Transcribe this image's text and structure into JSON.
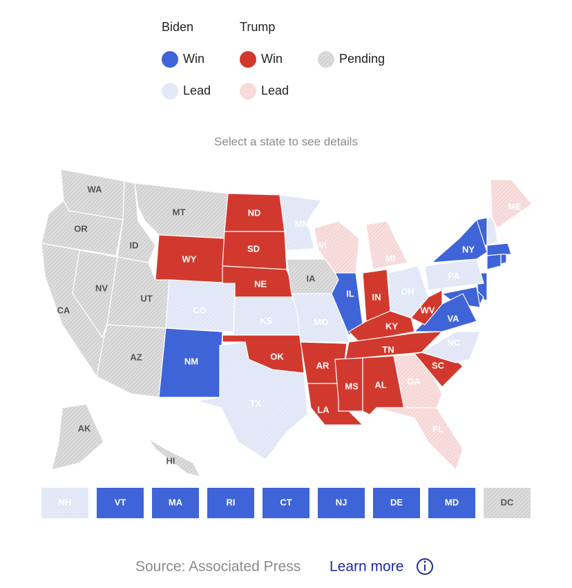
{
  "legend": {
    "groups": [
      {
        "name": "Biden",
        "items": [
          {
            "label": "Win",
            "status": "biden-win"
          },
          {
            "label": "Lead",
            "status": "biden-lead"
          }
        ]
      },
      {
        "name": "Trump",
        "items": [
          {
            "label": "Win",
            "status": "trump-win"
          },
          {
            "label": "Lead",
            "status": "trump-lead"
          }
        ]
      },
      {
        "items": [
          {
            "label": "Pending",
            "status": "pending"
          }
        ]
      }
    ]
  },
  "colors": {
    "biden-win": "#3e64d8",
    "biden-lead": "#dfe5f6",
    "trump-win": "#d2392e",
    "trump-lead": "#f6d6d6",
    "pending": "#d3d3d3"
  },
  "prompt": "Select a state to see details",
  "states": [
    {
      "label": "WA",
      "status": "pending"
    },
    {
      "label": "OR",
      "status": "pending"
    },
    {
      "label": "CA",
      "status": "pending"
    },
    {
      "label": "NV",
      "status": "pending"
    },
    {
      "label": "ID",
      "status": "pending"
    },
    {
      "label": "MT",
      "status": "pending"
    },
    {
      "label": "WY",
      "status": "trump-win"
    },
    {
      "label": "UT",
      "status": "pending"
    },
    {
      "label": "AZ",
      "status": "pending"
    },
    {
      "label": "CO",
      "status": "biden-lead"
    },
    {
      "label": "NM",
      "status": "biden-win"
    },
    {
      "label": "ND",
      "status": "trump-win"
    },
    {
      "label": "SD",
      "status": "trump-win"
    },
    {
      "label": "NE",
      "status": "trump-win"
    },
    {
      "label": "KS",
      "status": "biden-lead"
    },
    {
      "label": "OK",
      "status": "trump-win"
    },
    {
      "label": "TX",
      "status": "biden-lead"
    },
    {
      "label": "MN",
      "status": "biden-lead"
    },
    {
      "label": "IA",
      "status": "pending"
    },
    {
      "label": "MO",
      "status": "biden-lead"
    },
    {
      "label": "AR",
      "status": "trump-win"
    },
    {
      "label": "LA",
      "status": "trump-win"
    },
    {
      "label": "WI",
      "status": "trump-lead"
    },
    {
      "label": "IL",
      "status": "biden-win"
    },
    {
      "label": "MI",
      "status": "trump-lead"
    },
    {
      "label": "IN",
      "status": "trump-win"
    },
    {
      "label": "OH",
      "status": "biden-lead"
    },
    {
      "label": "KY",
      "status": "trump-win"
    },
    {
      "label": "TN",
      "status": "trump-win"
    },
    {
      "label": "MS",
      "status": "trump-win"
    },
    {
      "label": "AL",
      "status": "trump-win"
    },
    {
      "label": "GA",
      "status": "trump-lead"
    },
    {
      "label": "FL",
      "status": "trump-lead"
    },
    {
      "label": "SC",
      "status": "trump-win"
    },
    {
      "label": "NC",
      "status": "biden-lead"
    },
    {
      "label": "VA",
      "status": "biden-win"
    },
    {
      "label": "WV",
      "status": "trump-win"
    },
    {
      "label": "PA",
      "status": "biden-lead"
    },
    {
      "label": "NY",
      "status": "biden-win"
    },
    {
      "label": "ME",
      "status": "trump-lead"
    },
    {
      "label": "AK",
      "status": "pending"
    },
    {
      "label": "HI",
      "status": "pending"
    }
  ],
  "small_states": [
    {
      "label": "NH",
      "status": "biden-lead"
    },
    {
      "label": "VT",
      "status": "biden-win"
    },
    {
      "label": "MA",
      "status": "biden-win"
    },
    {
      "label": "RI",
      "status": "biden-win"
    },
    {
      "label": "CT",
      "status": "biden-win"
    },
    {
      "label": "NJ",
      "status": "biden-win"
    },
    {
      "label": "DE",
      "status": "biden-win"
    },
    {
      "label": "MD",
      "status": "biden-win"
    },
    {
      "label": "DC",
      "status": "pending"
    }
  ],
  "footer": {
    "source": "Source: Associated Press",
    "link": "Learn more"
  }
}
